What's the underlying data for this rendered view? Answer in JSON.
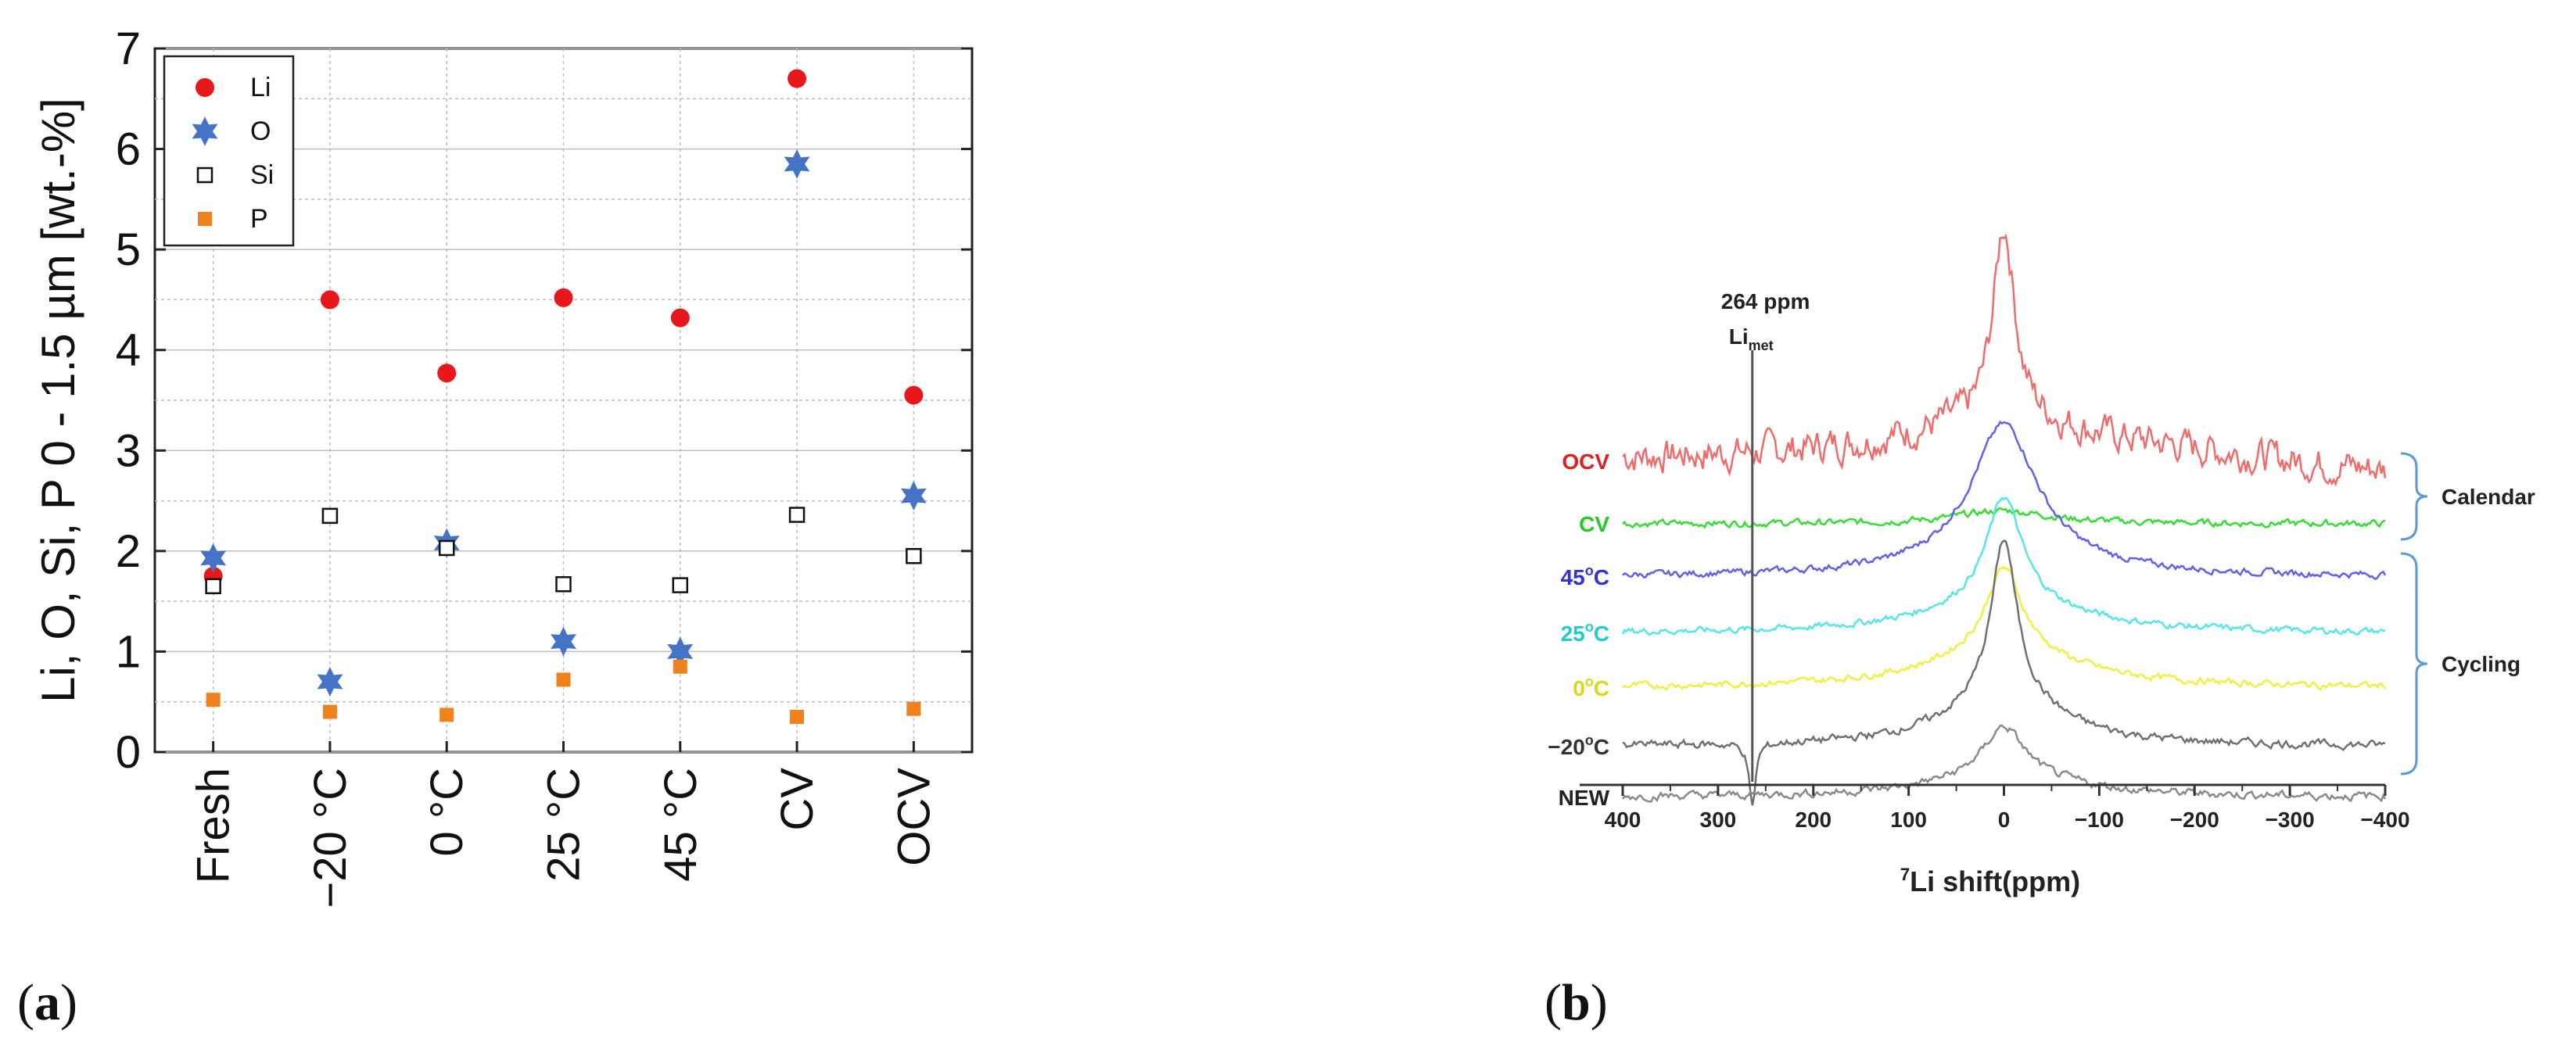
{
  "panels": {
    "a_label": "a",
    "b_label": "b"
  },
  "chart_data": [
    {
      "id": "panel-a",
      "type": "scatter",
      "title": "",
      "xlabel": "",
      "ylabel": "Li, O, Si, P 0 - 1.5 µm [wt.-%]",
      "categories": [
        "Fresh",
        "−20 °C",
        "0 °C",
        "25 °C",
        "45 °C",
        "CV",
        "OCV"
      ],
      "ylim": [
        0,
        7
      ],
      "yticks": [
        0,
        1,
        2,
        3,
        4,
        5,
        6,
        7
      ],
      "grid": true,
      "legend": "top-left",
      "series": [
        {
          "name": "Li",
          "marker": "circle",
          "color": "#e8171c",
          "values": [
            1.75,
            4.5,
            3.77,
            4.52,
            4.32,
            6.7,
            3.55
          ]
        },
        {
          "name": "O",
          "marker": "star",
          "color": "#4472c4",
          "values": [
            1.93,
            0.7,
            2.08,
            1.1,
            1.0,
            5.85,
            2.55
          ]
        },
        {
          "name": "Si",
          "marker": "open-square",
          "color": "#111111",
          "values": [
            1.65,
            2.35,
            2.03,
            1.67,
            1.66,
            2.36,
            1.95
          ]
        },
        {
          "name": "P",
          "marker": "square",
          "color": "#f0821e",
          "values": [
            0.52,
            0.4,
            0.37,
            0.72,
            0.85,
            0.35,
            0.43
          ]
        }
      ]
    },
    {
      "id": "panel-b",
      "type": "line",
      "title": "",
      "xlabel": "7Li shift(ppm)",
      "xlabel_sup": "7",
      "xlabel_main": "Li shift(ppm)",
      "ylabel": "",
      "xlim": [
        400,
        -400
      ],
      "xticks": [
        400,
        300,
        200,
        100,
        0,
        -100,
        -200,
        -300,
        -400
      ],
      "xtick_labels": [
        "400",
        "300",
        "200",
        "100",
        "0",
        "−100",
        "−200",
        "−300",
        "−400"
      ],
      "annotation": {
        "text": "264 ppm",
        "sub_main": "Li",
        "sub_script": "met",
        "ppm": 264
      },
      "series": [
        {
          "name": "OCV",
          "color": "#f26a6a",
          "label_color": "#e02020",
          "baseline": 2.95,
          "peak": 1.8,
          "width": 14,
          "tail": 0.35,
          "tail_width": 150,
          "dip": 0,
          "noise": 0.25
        },
        {
          "name": "CV",
          "color": "#33dd33",
          "label_color": "#22cc22",
          "baseline": 0.9,
          "peak": 0.12,
          "width": 60,
          "tail": 0.0,
          "tail_width": 100,
          "dip": 0,
          "noise": 0.05
        },
        {
          "name": "45°C",
          "label_main": "45",
          "label_unit": "C",
          "color": "#6060ee",
          "label_color": "#3030dd",
          "baseline": 0.78,
          "peak": 1.15,
          "width": 40,
          "tail": 0.25,
          "tail_width": 80,
          "dip": 0,
          "noise": 0.05
        },
        {
          "name": "25°C",
          "label_main": "25",
          "label_unit": "C",
          "color": "#55e6ea",
          "label_color": "#22cccc",
          "baseline": 0.75,
          "peak": 0.95,
          "width": 22,
          "tail": 0.3,
          "tail_width": 90,
          "dip": 0,
          "noise": 0.05
        },
        {
          "name": "0°C",
          "label_main": "0",
          "label_unit": "C",
          "color": "#f0f040",
          "label_color": "#d8d820",
          "baseline": 0.75,
          "peak": 0.75,
          "width": 22,
          "tail": 0.35,
          "tail_width": 90,
          "dip": 0,
          "noise": 0.05
        },
        {
          "name": "−20°C",
          "label_main": "−20",
          "label_unit": "C",
          "color": "#707070",
          "label_color": "#333333",
          "baseline": 1.0,
          "peak": 1.45,
          "width": 16,
          "tail": 0.45,
          "tail_width": 70,
          "dip": 0.6,
          "noise": 0.06
        },
        {
          "name": "NEW",
          "color": "#8a8a8a",
          "label_color": "#222222",
          "baseline": 0.22,
          "peak": 0.45,
          "width": 25,
          "tail": 0.2,
          "tail_width": 90,
          "dip": 0,
          "noise": 0.06
        }
      ],
      "brackets": [
        {
          "text": "Calendar",
          "groups": [
            "OCV",
            "CV"
          ]
        },
        {
          "text": "Cycling",
          "groups": [
            "45°C",
            "25°C",
            "0°C",
            "−20°C"
          ]
        }
      ]
    }
  ]
}
